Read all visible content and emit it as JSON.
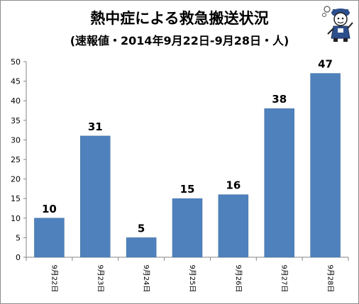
{
  "title": "熱中症による救急搬送状況",
  "subtitle": "(速報値・2014年9月22日-9月28日・人)",
  "chart_data": {
    "type": "bar",
    "categories": [
      "9月22日",
      "9月23日",
      "9月24日",
      "9月25日",
      "9月26日",
      "9月27日",
      "9月28日"
    ],
    "values": [
      10,
      31,
      5,
      15,
      16,
      38,
      47
    ],
    "ylim": [
      0,
      50
    ],
    "yticks": [
      0,
      5,
      10,
      15,
      20,
      25,
      30,
      35,
      40,
      45,
      50
    ],
    "grid": false,
    "legend": "none",
    "bar_color": "#4f81bd"
  },
  "mascot_icon": "cartoon-character-icon"
}
